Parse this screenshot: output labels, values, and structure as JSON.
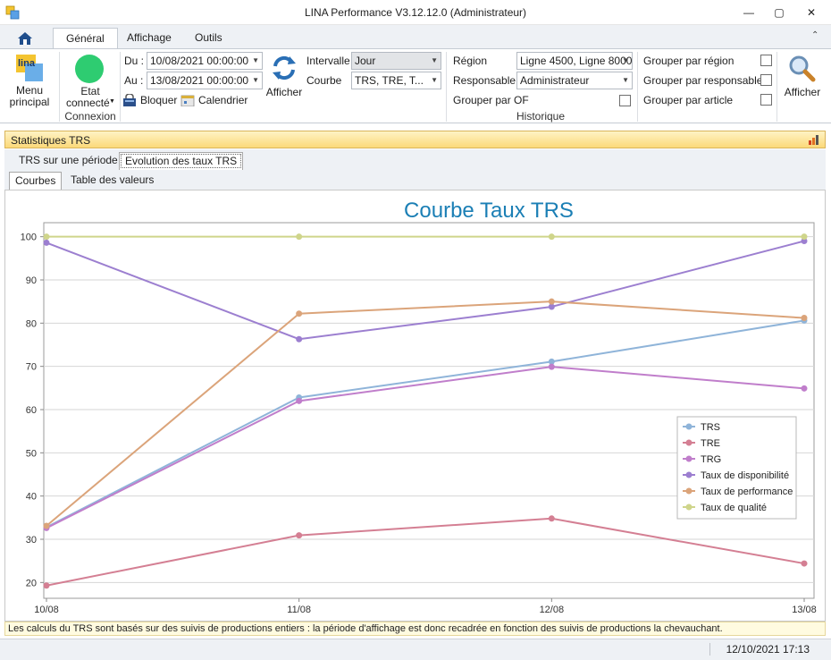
{
  "window": {
    "title": "LINA Performance  V3.12.12.0  (Administrateur)",
    "minimize": "—",
    "maximize": "▢",
    "close": "✕"
  },
  "ribbon_tabs": [
    {
      "label": "Général"
    },
    {
      "label": "Affichage"
    },
    {
      "label": "Outils"
    }
  ],
  "ribbon": {
    "menu_principal": "Menu principal",
    "menu_logo": "lina",
    "etat": "Etat",
    "connecte": "connecté",
    "connexion_group": "Connexion",
    "du_label": "Du :",
    "du_value": "10/08/2021 00:00:00",
    "au_label": "Au :",
    "au_value": "13/08/2021 00:00:00",
    "bloquer": "Bloquer",
    "calendrier": "Calendrier",
    "afficher": "Afficher",
    "intervalle_label": "Intervalle",
    "intervalle_value": "Jour",
    "courbe_label": "Courbe",
    "courbe_value": "TRS, TRE, T...",
    "region_label": "Région",
    "region_value": "Ligne 4500, Ligne 8000",
    "responsable_label": "Responsable",
    "responsable_value": "Administrateur",
    "grouper_of": "Grouper par OF",
    "historique_group": "Historique",
    "grouper_region": "Grouper par région",
    "grouper_responsable": "Grouper par responsable",
    "grouper_article": "Grouper par article",
    "afficher2": "Afficher"
  },
  "panel": {
    "title": "Statistiques TRS",
    "tabs": [
      "TRS sur une période",
      "Evolution des taux TRS"
    ],
    "subtabs": [
      "Courbes",
      "Table des valeurs"
    ]
  },
  "footnote": "Les calculs du TRS sont basés sur des suivis de productions entiers : la période d'affichage est donc recadrée en fonction des suivis de productions la chevauchant.",
  "status": {
    "datetime": "12/10/2021 17:13"
  },
  "colors": {
    "TRS": "#8fb4d9",
    "TRE": "#d47f93",
    "TRG": "#c07ecb",
    "Taux de disponibilité": "#9c7fd0",
    "Taux de performance": "#dba47a",
    "Taux de qualité": "#cfd58b",
    "title": "#1b7fb5",
    "etat_green": "#2ecc71"
  },
  "chart_data": {
    "type": "line",
    "title": "Courbe Taux TRS",
    "categories": [
      "10/08",
      "11/08",
      "12/08",
      "13/08"
    ],
    "ylim": [
      18,
      102
    ],
    "yticks": [
      20,
      30,
      40,
      50,
      60,
      70,
      80,
      90,
      100
    ],
    "grid": true,
    "legend": "right",
    "series": [
      {
        "name": "TRS",
        "values": [
          32.8,
          62.8,
          71.1,
          80.6
        ]
      },
      {
        "name": "TRE",
        "values": [
          19.3,
          30.9,
          34.8,
          24.4
        ]
      },
      {
        "name": "TRG",
        "values": [
          32.6,
          62.0,
          69.9,
          64.9
        ]
      },
      {
        "name": "Taux de disponibilité",
        "values": [
          98.6,
          76.3,
          83.8,
          99.0
        ]
      },
      {
        "name": "Taux de performance",
        "values": [
          33.1,
          82.2,
          85.0,
          81.2
        ]
      },
      {
        "name": "Taux de qualité",
        "values": [
          100,
          100,
          100,
          100
        ]
      }
    ]
  }
}
